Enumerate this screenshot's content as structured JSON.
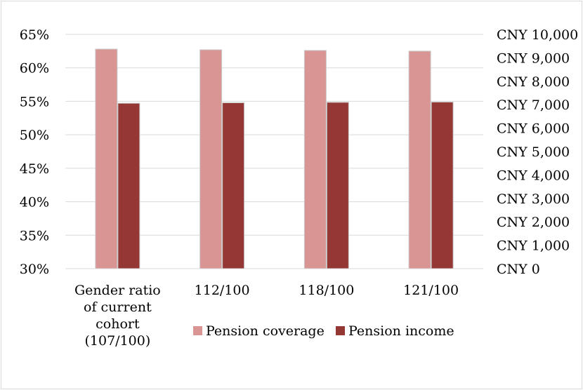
{
  "chart_data": {
    "type": "bar",
    "categories": [
      [
        "Gender ratio",
        "of current",
        "cohort",
        "(107/100)"
      ],
      [
        "112/100"
      ],
      [
        "118/100"
      ],
      [
        "121/100"
      ]
    ],
    "series": [
      {
        "name": "Pension coverage",
        "axis": "left",
        "color": "#d99594",
        "values": [
          0.628,
          0.627,
          0.626,
          0.625
        ]
      },
      {
        "name": "Pension income",
        "axis": "right",
        "color": "#953734",
        "values": [
          7060,
          7080,
          7100,
          7110
        ]
      }
    ],
    "y_left": {
      "ylim": [
        0.3,
        0.65
      ],
      "tick_values": [
        0.3,
        0.35,
        0.4,
        0.45,
        0.5,
        0.55,
        0.6,
        0.65
      ],
      "tick_labels": [
        "30%",
        "35%",
        "40%",
        "45%",
        "50%",
        "55%",
        "60%",
        "65%"
      ]
    },
    "y_right": {
      "ylim": [
        0,
        10000
      ],
      "tick_values": [
        0,
        1000,
        2000,
        3000,
        4000,
        5000,
        6000,
        7000,
        8000,
        9000,
        10000
      ],
      "tick_labels": [
        "CNY 0",
        "CNY 1,000",
        "CNY 2,000",
        "CNY 3,000",
        "CNY 4,000",
        "CNY 5,000",
        "CNY 6,000",
        "CNY 7,000",
        "CNY 8,000",
        "CNY 9,000",
        "CNY 10,000"
      ]
    },
    "grid": true,
    "gridline_color": "#d9d9d9",
    "legend_position": "bottom"
  }
}
